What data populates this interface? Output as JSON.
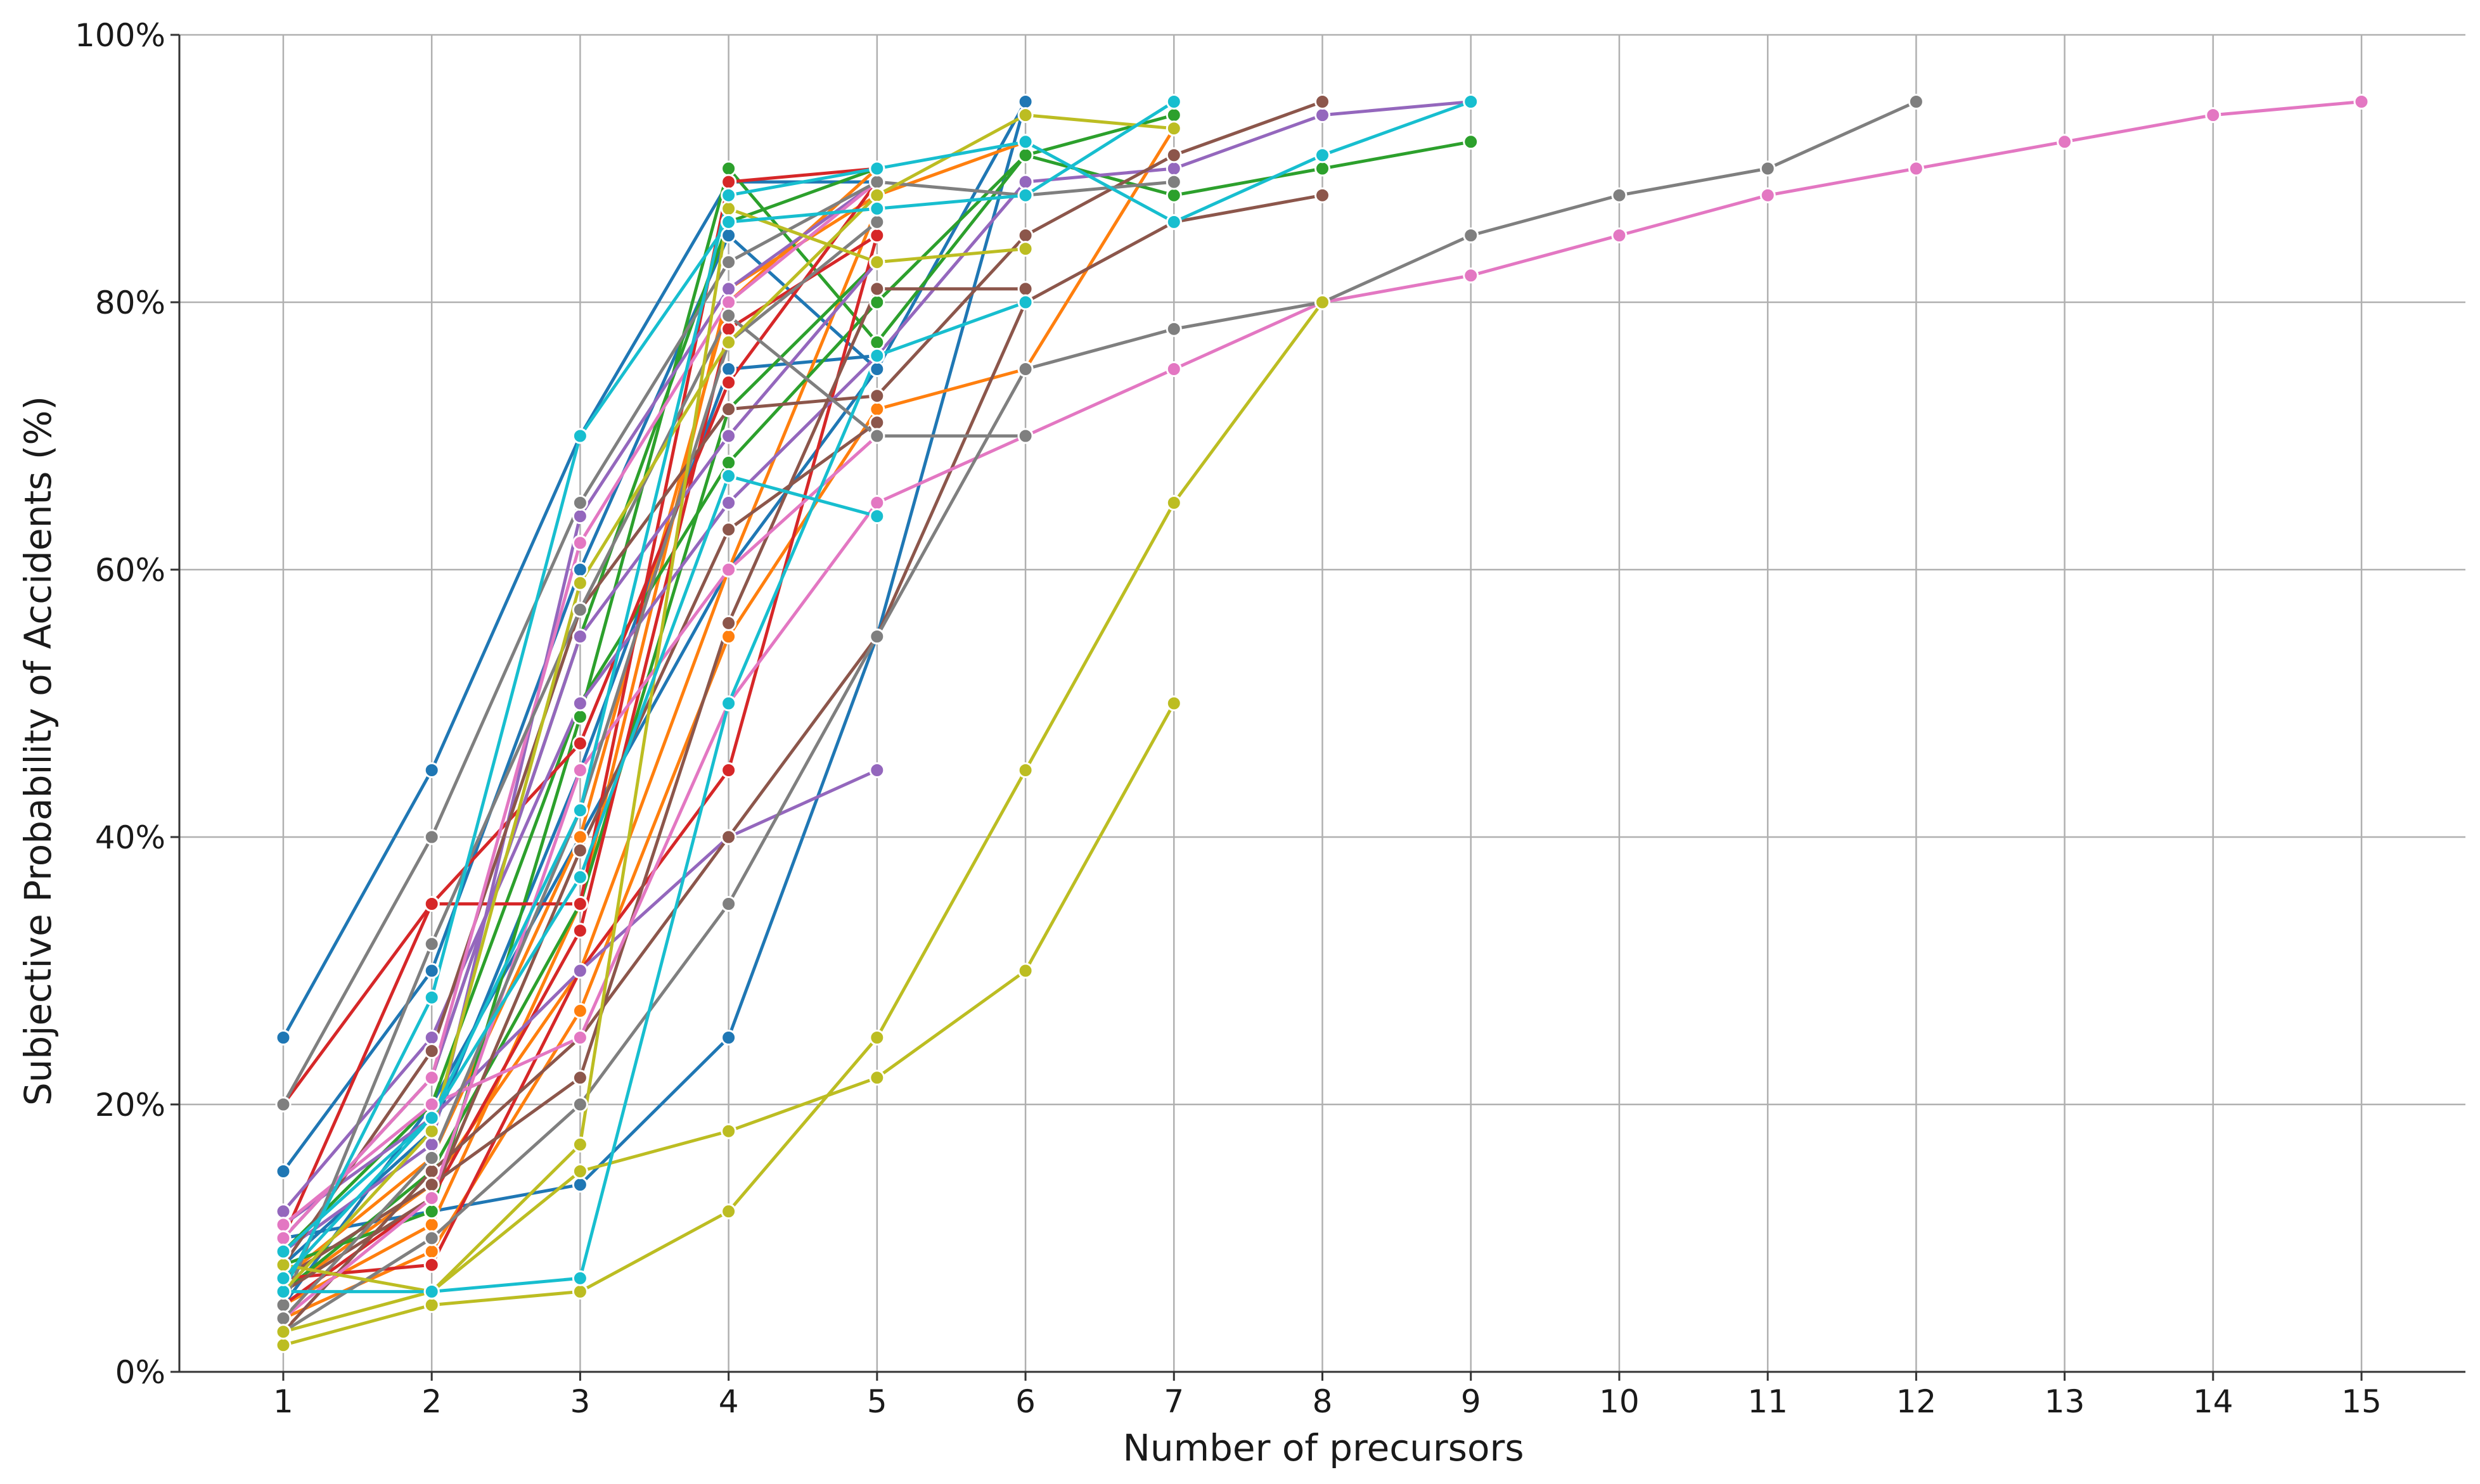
{
  "chart_data": {
    "type": "line",
    "xlabel": "Number of precursors",
    "ylabel": "Subjective Probability of Accidents (%)",
    "x_ticks": [
      1,
      2,
      3,
      4,
      5,
      6,
      7,
      8,
      9,
      10,
      11,
      12,
      13,
      14,
      15
    ],
    "y_ticks": [
      "0%",
      "20%",
      "40%",
      "60%",
      "80%",
      "100%"
    ],
    "xlim": [
      0.3,
      15.7
    ],
    "ylim": [
      0,
      100
    ],
    "grid": true,
    "legend": "none",
    "series": [
      {
        "color": "#1f77b4",
        "x": [
          1,
          2,
          3,
          4,
          5
        ],
        "y": [
          25,
          45,
          70,
          89,
          89
        ]
      },
      {
        "color": "#1f77b4",
        "x": [
          1,
          2,
          3,
          4,
          5,
          6
        ],
        "y": [
          15,
          30,
          60,
          85,
          75,
          95
        ]
      },
      {
        "color": "#1f77b4",
        "x": [
          1,
          2,
          3,
          4,
          5,
          6
        ],
        "y": [
          10,
          12,
          14,
          25,
          55,
          95
        ]
      },
      {
        "color": "#1f77b4",
        "x": [
          1,
          2,
          3,
          4,
          5
        ],
        "y": [
          8,
          18,
          45,
          75,
          76
        ]
      },
      {
        "color": "#1f77b4",
        "x": [
          1,
          2,
          3,
          4,
          5
        ],
        "y": [
          5,
          20,
          40,
          60,
          75
        ]
      },
      {
        "color": "#ff7f0e",
        "x": [
          1,
          2,
          3,
          4,
          5,
          6,
          7
        ],
        "y": [
          4,
          9,
          27,
          55,
          72,
          75,
          93
        ]
      },
      {
        "color": "#ff7f0e",
        "x": [
          1,
          2,
          3,
          4,
          5,
          6
        ],
        "y": [
          5,
          11,
          35,
          81,
          88,
          92
        ]
      },
      {
        "color": "#ff7f0e",
        "x": [
          1,
          2,
          3,
          4,
          5
        ],
        "y": [
          6,
          14,
          30,
          60,
          87
        ]
      },
      {
        "color": "#ff7f0e",
        "x": [
          1,
          2,
          3,
          4,
          5
        ],
        "y": [
          7,
          16,
          40,
          80,
          90
        ]
      },
      {
        "color": "#2ca02c",
        "x": [
          1,
          2,
          3,
          4,
          5,
          6,
          7,
          8,
          9
        ],
        "y": [
          9,
          20,
          50,
          68,
          80,
          91,
          88,
          90,
          92
        ]
      },
      {
        "color": "#2ca02c",
        "x": [
          1,
          2,
          3,
          4,
          5,
          6,
          7
        ],
        "y": [
          8,
          12,
          49,
          90,
          77,
          91,
          94
        ]
      },
      {
        "color": "#2ca02c",
        "x": [
          1,
          2,
          3,
          4,
          5
        ],
        "y": [
          6,
          15,
          35,
          72,
          83
        ]
      },
      {
        "color": "#2ca02c",
        "x": [
          1,
          2,
          3,
          4,
          5
        ],
        "y": [
          10,
          22,
          55,
          86,
          90
        ]
      },
      {
        "color": "#d62728",
        "x": [
          1,
          2,
          3,
          4,
          5
        ],
        "y": [
          20,
          35,
          35,
          89,
          90
        ]
      },
      {
        "color": "#d62728",
        "x": [
          1,
          2,
          3,
          4,
          5
        ],
        "y": [
          7,
          8,
          30,
          45,
          85
        ]
      },
      {
        "color": "#d62728",
        "x": [
          1,
          2,
          3,
          4,
          5
        ],
        "y": [
          10,
          35,
          47,
          74,
          89
        ]
      },
      {
        "color": "#d62728",
        "x": [
          1,
          2,
          3,
          4,
          5
        ],
        "y": [
          5,
          13,
          33,
          78,
          85
        ]
      },
      {
        "color": "#9467bd",
        "x": [
          1,
          2,
          3,
          4,
          5,
          6,
          7,
          8,
          9
        ],
        "y": [
          12,
          25,
          50,
          65,
          76,
          89,
          90,
          94,
          95
        ]
      },
      {
        "color": "#9467bd",
        "x": [
          1,
          2,
          3,
          4,
          5
        ],
        "y": [
          11,
          19,
          30,
          40,
          45
        ]
      },
      {
        "color": "#9467bd",
        "x": [
          1,
          2,
          3,
          4,
          5
        ],
        "y": [
          10,
          22,
          55,
          70,
          83
        ]
      },
      {
        "color": "#9467bd",
        "x": [
          1,
          2,
          3,
          4,
          5
        ],
        "y": [
          9,
          17,
          64,
          81,
          89
        ]
      },
      {
        "color": "#8c564b",
        "x": [
          1,
          2,
          3,
          4,
          5,
          6,
          7,
          8
        ],
        "y": [
          8,
          24,
          57,
          72,
          73,
          85,
          91,
          95
        ]
      },
      {
        "color": "#8c564b",
        "x": [
          1,
          2,
          3,
          4,
          5,
          6,
          7,
          8
        ],
        "y": [
          3,
          15,
          25,
          40,
          55,
          80,
          86,
          88
        ]
      },
      {
        "color": "#8c564b",
        "x": [
          1,
          2,
          3,
          4,
          5,
          6
        ],
        "y": [
          7,
          14,
          22,
          56,
          81,
          81
        ]
      },
      {
        "color": "#8c564b",
        "x": [
          1,
          2,
          3,
          4,
          5
        ],
        "y": [
          6,
          13,
          39,
          63,
          71
        ]
      },
      {
        "color": "#e377c2",
        "x": [
          1,
          2,
          3,
          4,
          5,
          6,
          7,
          8,
          9,
          10,
          11,
          12,
          13,
          14,
          15
        ],
        "y": [
          11,
          20,
          25,
          50,
          65,
          70,
          75,
          80,
          82,
          85,
          88,
          90,
          92,
          94,
          95
        ]
      },
      {
        "color": "#e377c2",
        "x": [
          1,
          2,
          3,
          4,
          5
        ],
        "y": [
          10,
          22,
          62,
          80,
          89
        ]
      },
      {
        "color": "#e377c2",
        "x": [
          1,
          2,
          3,
          4,
          5
        ],
        "y": [
          4,
          13,
          45,
          60,
          70
        ]
      },
      {
        "color": "#7f7f7f",
        "x": [
          1,
          2,
          3,
          4,
          5,
          6,
          7,
          8,
          9,
          10,
          11,
          12
        ],
        "y": [
          3,
          10,
          20,
          35,
          55,
          75,
          78,
          80,
          85,
          88,
          90,
          95
        ]
      },
      {
        "color": "#7f7f7f",
        "x": [
          1,
          2,
          3,
          4,
          5,
          6,
          7
        ],
        "y": [
          20,
          40,
          65,
          83,
          89,
          88,
          89
        ]
      },
      {
        "color": "#7f7f7f",
        "x": [
          1,
          2,
          3,
          4,
          5,
          6
        ],
        "y": [
          5,
          32,
          57,
          79,
          70,
          70
        ]
      },
      {
        "color": "#7f7f7f",
        "x": [
          1,
          2,
          3,
          4,
          5
        ],
        "y": [
          4,
          16,
          42,
          77,
          86
        ]
      },
      {
        "color": "#bcbd22",
        "x": [
          1,
          2,
          3,
          4,
          5,
          6,
          7,
          8
        ],
        "y": [
          2,
          5,
          6,
          12,
          25,
          45,
          65,
          80
        ]
      },
      {
        "color": "#bcbd22",
        "x": [
          1,
          2,
          3,
          4,
          5,
          6,
          7
        ],
        "y": [
          3,
          6,
          15,
          18,
          22,
          30,
          50
        ]
      },
      {
        "color": "#bcbd22",
        "x": [
          1,
          2,
          3,
          4,
          5,
          6
        ],
        "y": [
          8,
          6,
          17,
          87,
          83,
          84
        ]
      },
      {
        "color": "#bcbd22",
        "x": [
          1,
          2,
          3,
          4,
          5,
          6,
          7
        ],
        "y": [
          6,
          18,
          59,
          77,
          88,
          94,
          93
        ]
      },
      {
        "color": "#17becf",
        "x": [
          1,
          2,
          3,
          4,
          5,
          6,
          7
        ],
        "y": [
          6,
          28,
          70,
          86,
          87,
          88,
          95
        ]
      },
      {
        "color": "#17becf",
        "x": [
          1,
          2,
          3,
          4,
          5,
          6
        ],
        "y": [
          6,
          6,
          7,
          50,
          76,
          80
        ]
      },
      {
        "color": "#17becf",
        "x": [
          1,
          2,
          3,
          4,
          5
        ],
        "y": [
          7,
          19,
          37,
          67,
          64
        ]
      },
      {
        "color": "#17becf",
        "x": [
          1,
          2,
          3,
          4,
          5,
          6,
          7,
          8,
          9
        ],
        "y": [
          9,
          19,
          42,
          88,
          90,
          92,
          86,
          91,
          95
        ]
      }
    ]
  }
}
